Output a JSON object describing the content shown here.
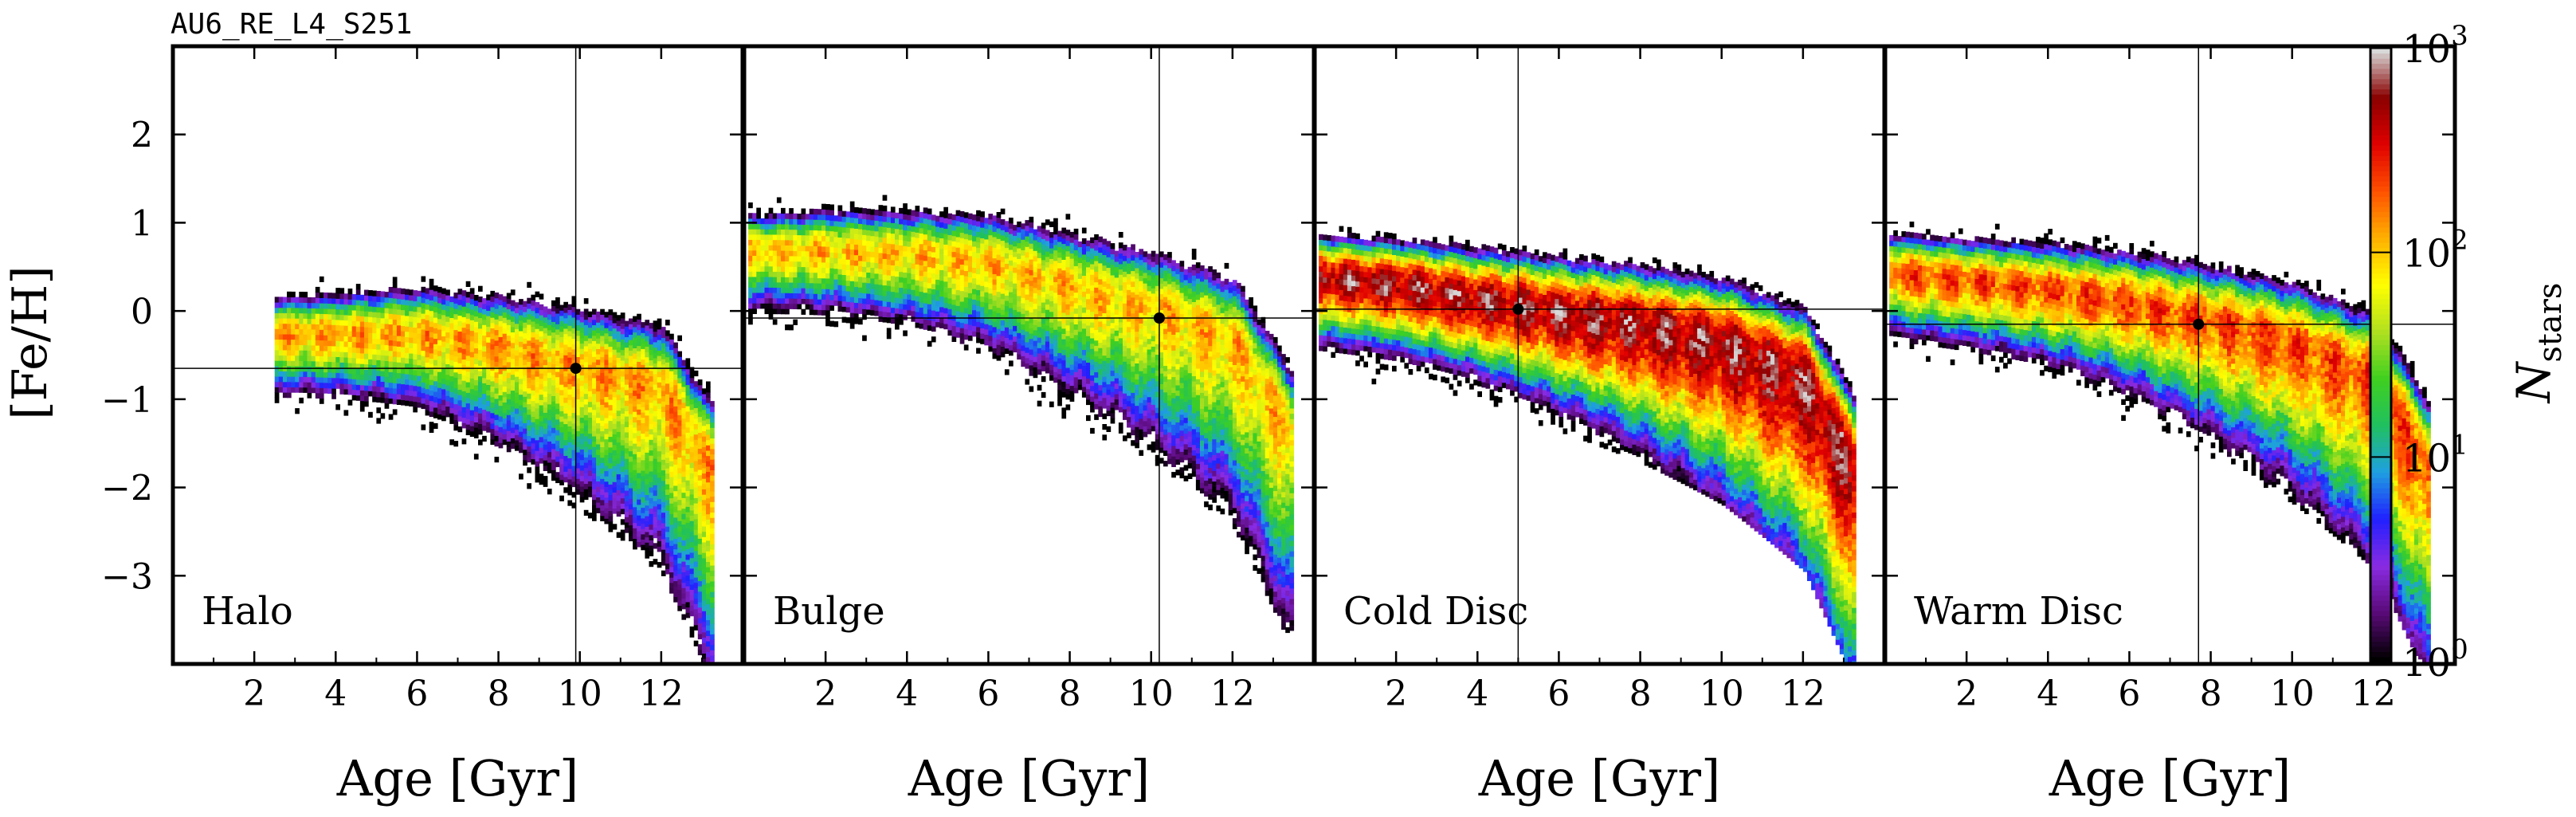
{
  "header": {
    "run_label": "AU6_RE_L4_S251"
  },
  "colors": {
    "frame": "#000000",
    "colormap": [
      "#000000",
      "#5a0a78",
      "#8a2be2",
      "#2020ff",
      "#1fa0e0",
      "#20c060",
      "#40d020",
      "#b0e020",
      "#ffff00",
      "#ffb000",
      "#ff5000",
      "#e00000",
      "#8a0000",
      "#d8d8d8"
    ]
  },
  "colorbar": {
    "label": "N",
    "label_subscript": "stars",
    "scale": "log",
    "range": [
      1,
      1000
    ],
    "ticks": [
      {
        "value": 1,
        "base": "10",
        "exp": "0"
      },
      {
        "value": 10,
        "base": "10",
        "exp": "1"
      },
      {
        "value": 100,
        "base": "10",
        "exp": "2"
      },
      {
        "value": 1000,
        "base": "10",
        "exp": "3"
      }
    ]
  },
  "chart_data": {
    "type": "heatmap",
    "ylabel": "[Fe/H]",
    "ylim": [
      -4.0,
      3.0
    ],
    "xlim": [
      0.0,
      14.0
    ],
    "yticks": [
      "2",
      "1",
      "0",
      "−1",
      "−2",
      "−3"
    ],
    "ytick_values": [
      2,
      1,
      0,
      -1,
      -2,
      -3
    ],
    "xticks": [
      "2",
      "4",
      "6",
      "8",
      "10",
      "12"
    ],
    "xtick_values": [
      2,
      4,
      6,
      8,
      10,
      12
    ],
    "panels": [
      {
        "name": "Halo",
        "xlabel": "Age [Gyr]",
        "median": {
          "age": 9.9,
          "feh": -0.65
        },
        "ridge": [
          [
            2.5,
            -0.3
          ],
          [
            4,
            -0.3
          ],
          [
            6,
            -0.3
          ],
          [
            8,
            -0.45
          ],
          [
            10,
            -0.65
          ],
          [
            12,
            -0.9
          ],
          [
            13.2,
            -1.8
          ]
        ],
        "peak": 180
      },
      {
        "name": "Bulge",
        "xlabel": "Age [Gyr]",
        "median": {
          "age": 10.2,
          "feh": -0.08
        },
        "ridge": [
          [
            0.1,
            0.65
          ],
          [
            2,
            0.65
          ],
          [
            4,
            0.6
          ],
          [
            6,
            0.5
          ],
          [
            8,
            0.25
          ],
          [
            10,
            0.0
          ],
          [
            12,
            -0.35
          ],
          [
            13.4,
            -1.4
          ]
        ],
        "peak": 150
      },
      {
        "name": "Cold Disc",
        "xlabel": "Age [Gyr]",
        "median": {
          "age": 5.0,
          "feh": 0.02
        },
        "ridge": [
          [
            0.1,
            0.35
          ],
          [
            2,
            0.25
          ],
          [
            4,
            0.1
          ],
          [
            6,
            -0.05
          ],
          [
            8,
            -0.2
          ],
          [
            10,
            -0.4
          ],
          [
            12,
            -0.8
          ],
          [
            13.2,
            -1.8
          ]
        ],
        "peak": 800
      },
      {
        "name": "Warm Disc",
        "xlabel": "Age [Gyr]",
        "median": {
          "age": 7.7,
          "feh": -0.15
        },
        "ridge": [
          [
            0.1,
            0.4
          ],
          [
            2,
            0.3
          ],
          [
            4,
            0.2
          ],
          [
            6,
            0.05
          ],
          [
            8,
            -0.15
          ],
          [
            10,
            -0.4
          ],
          [
            12,
            -0.8
          ],
          [
            13.3,
            -1.8
          ]
        ],
        "peak": 300
      }
    ]
  }
}
